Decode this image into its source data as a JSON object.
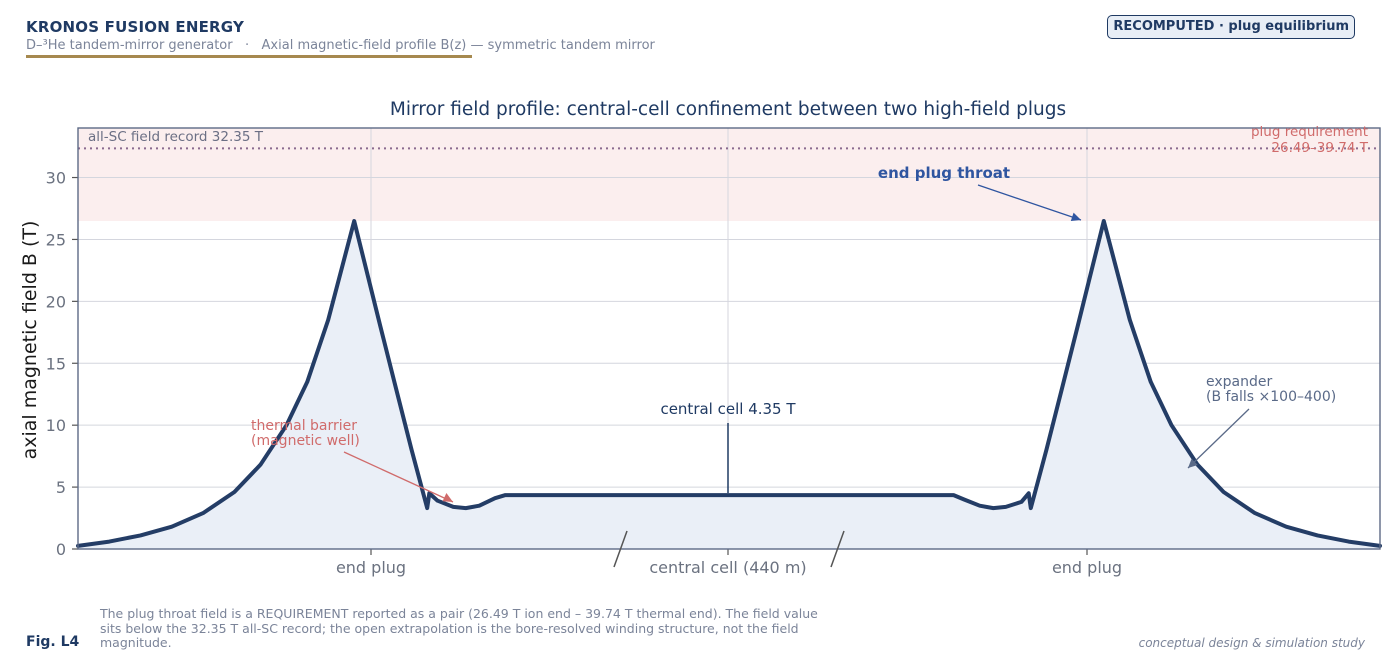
{
  "header": {
    "brand": "KRONOS FUSION ENERGY",
    "subtitle": "D–³He tandem-mirror generator   ·   Axial magnetic-field profile B(z) — symmetric tandem mirror",
    "badge": "RECOMPUTED · plug equilibrium"
  },
  "chart_data": {
    "type": "line",
    "title": "Mirror field profile: central-cell confinement between two high-field plugs",
    "xlabel": "",
    "ylabel": "axial magnetic field  B  (T)",
    "ylim": [
      0,
      34
    ],
    "yticks": [
      0,
      5,
      10,
      15,
      20,
      25,
      30
    ],
    "grid": true,
    "region_labels": [
      "end plug",
      "central cell (440 m)",
      "end plug"
    ],
    "series": [
      {
        "name": "",
        "points": [
          [
            0,
            0.25
          ],
          [
            30,
            0.6
          ],
          [
            60,
            1.1
          ],
          [
            90,
            1.8
          ],
          [
            120,
            2.9
          ],
          [
            150,
            4.6
          ],
          [
            175,
            6.8
          ],
          [
            200,
            10.0
          ],
          [
            220,
            13.5
          ],
          [
            240,
            18.5
          ],
          [
            265,
            26.49
          ],
          [
            290,
            18.0
          ],
          [
            305,
            13.0
          ],
          [
            320,
            8.0
          ],
          [
            335,
            3.3
          ],
          [
            337,
            4.5
          ],
          [
            345,
            3.9
          ],
          [
            360,
            3.4
          ],
          [
            372,
            3.3
          ],
          [
            385,
            3.5
          ],
          [
            400,
            4.1
          ],
          [
            410,
            4.35
          ],
          [
            840,
            4.35
          ],
          [
            850,
            4.0
          ],
          [
            865,
            3.5
          ],
          [
            878,
            3.3
          ],
          [
            890,
            3.4
          ],
          [
            905,
            3.8
          ],
          [
            912,
            4.5
          ],
          [
            914,
            3.3
          ],
          [
            929,
            8.0
          ],
          [
            944,
            13.0
          ],
          [
            959,
            18.0
          ],
          [
            984,
            26.49
          ],
          [
            1009,
            18.5
          ],
          [
            1029,
            13.5
          ],
          [
            1049,
            10.0
          ],
          [
            1074,
            6.8
          ],
          [
            1099,
            4.6
          ],
          [
            1129,
            2.9
          ],
          [
            1159,
            1.8
          ],
          [
            1189,
            1.1
          ],
          [
            1219,
            0.6
          ],
          [
            1249,
            0.25
          ]
        ]
      }
    ],
    "reference_line": {
      "value": 32.35,
      "label": "all-SC field record 32.35 T"
    },
    "requirement_band": {
      "range": [
        26.49,
        39.74
      ],
      "label_line1": "plug requirement",
      "label_line2": "26.49–39.74 T"
    },
    "annotations": {
      "thermal_barrier_1": "thermal barrier",
      "thermal_barrier_2": "(magnetic well)",
      "central_cell": "central cell 4.35 T",
      "end_plug_throat": "end plug throat",
      "expander_1": "expander",
      "expander_2": "(B falls ×100–400)"
    },
    "colors": {
      "line": "#243d66",
      "fill": "#eaeff7",
      "band": "#fbeeee",
      "reference": "#8a6a8f",
      "warning_text": "#d06b6b",
      "accent_text": "#2f55a0"
    }
  },
  "footer": {
    "fig": "Fig. L4",
    "caption": "The plug throat field is a REQUIREMENT reported as a pair (26.49 T ion end – 39.74 T thermal end). The field value sits below the 32.35 T all-SC record; the open extrapolation is the bore-resolved winding structure, not the field magnitude.",
    "note": "conceptual design & simulation study"
  }
}
